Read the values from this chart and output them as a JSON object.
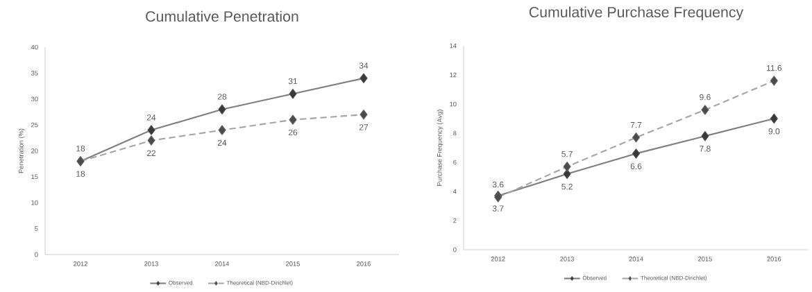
{
  "chart_data": [
    {
      "type": "line",
      "title": "Cumulative Penetration",
      "ylabel": "Penetration (%)",
      "categories": [
        "2012",
        "2013",
        "2014",
        "2015",
        "2016"
      ],
      "series": [
        {
          "name": "Observed",
          "color": "#7f7f7f",
          "line_style": "solid",
          "values": [
            18,
            24,
            28,
            31,
            34
          ]
        },
        {
          "name": "Theoretical (NBD-Dirichlet)",
          "color": "#a6a6a6",
          "line_style": "dashed",
          "values": [
            18,
            22,
            24,
            26,
            27
          ]
        }
      ],
      "ylim": [
        0,
        40
      ],
      "yticks": [
        0,
        5,
        10,
        15,
        20,
        25,
        30,
        35,
        40
      ],
      "marker": "diamond",
      "data_labels": true,
      "legend": "bottom",
      "grid": false
    },
    {
      "type": "line",
      "title": "Cumulative Purchase Frequency",
      "ylabel": "Purchase Frequency (Avg)",
      "categories": [
        "2012",
        "2013",
        "2014",
        "2015",
        "2016"
      ],
      "series": [
        {
          "name": "Observed",
          "color": "#7f7f7f",
          "line_style": "solid",
          "values": [
            3.7,
            5.2,
            6.6,
            7.8,
            9.0
          ],
          "value_labels": [
            "3.7",
            "5.2",
            "6.6",
            "7.8",
            "9.0"
          ]
        },
        {
          "name": "Theoretical (NBD-Dirichlet)",
          "color": "#a6a6a6",
          "line_style": "dashed",
          "values": [
            3.6,
            5.7,
            7.7,
            9.6,
            11.6
          ],
          "value_labels": [
            "3.6",
            "5.7",
            "7.7",
            "9.6",
            "11.6"
          ]
        }
      ],
      "ylim": [
        0,
        14
      ],
      "yticks": [
        0,
        2,
        4,
        6,
        8,
        10,
        12,
        14
      ],
      "marker": "diamond",
      "legend": "bottom",
      "grid": false
    }
  ]
}
